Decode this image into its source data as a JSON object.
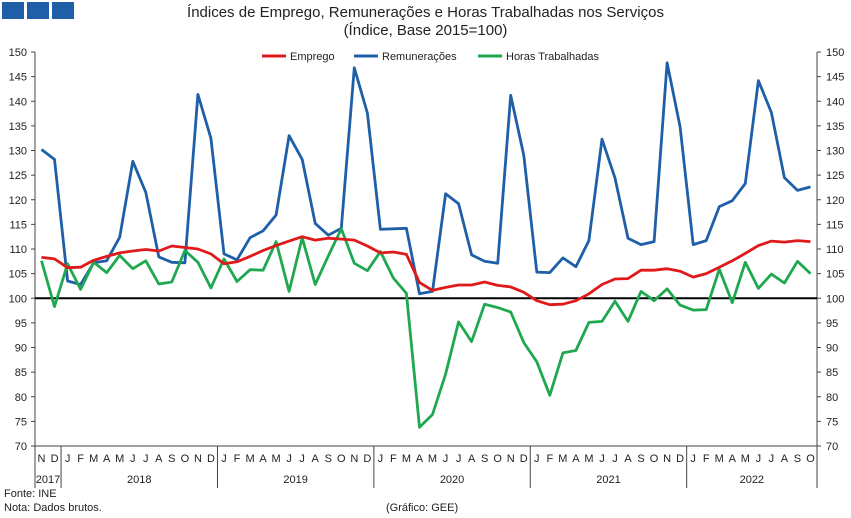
{
  "header": {
    "title": "Índices de Emprego, Remunerações e Horas Trabalhadas nos Serviços",
    "subtitle": "(Índice, Base 2015=100)"
  },
  "footer": {
    "source": "Fonte: INE",
    "note": "Nota: Dados brutos.",
    "credit": "(Gráfico: GEE)"
  },
  "chart_data": {
    "type": "line",
    "title": "Índices de Emprego, Remunerações e Horas Trabalhadas nos Serviços",
    "subtitle": "(Índice, Base 2015=100)",
    "ylim": [
      70,
      150
    ],
    "yticks": [
      70,
      75,
      80,
      85,
      90,
      95,
      100,
      105,
      110,
      115,
      120,
      125,
      130,
      135,
      140,
      145,
      150
    ],
    "reference_line": 100,
    "legend_position": "top-center",
    "x_month_labels": [
      "N",
      "D",
      "J",
      "F",
      "M",
      "A",
      "M",
      "J",
      "J",
      "A",
      "S",
      "O",
      "N",
      "D",
      "J",
      "F",
      "M",
      "A",
      "M",
      "J",
      "J",
      "A",
      "S",
      "O",
      "N",
      "D",
      "J",
      "F",
      "M",
      "A",
      "M",
      "J",
      "J",
      "A",
      "S",
      "O",
      "N",
      "D",
      "J",
      "F",
      "M",
      "A",
      "M",
      "J",
      "J",
      "A",
      "S",
      "O",
      "N",
      "D",
      "J",
      "F",
      "M",
      "A",
      "M",
      "J",
      "J",
      "A",
      "S",
      "O"
    ],
    "x_year_labels": [
      "2017",
      "2018",
      "2019",
      "2020",
      "2021",
      "2022"
    ],
    "series": [
      {
        "name": "Emprego",
        "color": "#e0191b",
        "values": [
          108.3,
          108.0,
          106.2,
          106.3,
          107.7,
          108.5,
          109.2,
          109.6,
          109.9,
          109.6,
          110.6,
          110.3,
          110.0,
          109.0,
          107.0,
          107.4,
          108.5,
          109.7,
          110.7,
          111.6,
          112.5,
          111.8,
          112.2,
          112.0,
          111.8,
          110.6,
          109.2,
          109.4,
          108.9,
          103.2,
          101.6,
          102.2,
          102.7,
          102.7,
          103.3,
          102.6,
          102.3,
          101.2,
          99.5,
          98.7,
          98.8,
          99.5,
          100.9,
          102.8,
          103.9,
          104.0,
          105.7,
          105.7,
          106.0,
          105.5,
          104.3,
          105.0,
          106.3,
          107.6,
          109.1,
          110.7,
          111.6,
          111.4,
          111.7,
          111.5
        ]
      },
      {
        "name": "Remunerações",
        "color": "#1f5fa8",
        "values": [
          130.2,
          128.2,
          103.5,
          102.8,
          107.2,
          107.6,
          112.4,
          127.8,
          121.5,
          108.4,
          107.3,
          107.2,
          141.4,
          132.5,
          109.0,
          107.8,
          112.3,
          113.7,
          116.9,
          133.0,
          128.2,
          115.2,
          112.8,
          114.2,
          146.8,
          137.6,
          114.0,
          114.1,
          114.2,
          100.9,
          101.4,
          121.2,
          119.2,
          108.8,
          107.5,
          107.1,
          141.2,
          129.0,
          105.3,
          105.2,
          108.2,
          106.4,
          111.7,
          132.3,
          124.4,
          112.2,
          110.9,
          111.5,
          147.8,
          134.8,
          110.9,
          111.7,
          118.6,
          119.8,
          123.3,
          144.2,
          137.7,
          124.5,
          121.9,
          122.6
        ]
      },
      {
        "name": "Horas Trabalhadas",
        "color": "#1fa84f",
        "values": [
          107.6,
          98.3,
          107.0,
          101.8,
          107.3,
          105.2,
          108.7,
          106.0,
          107.6,
          102.9,
          103.3,
          109.7,
          107.3,
          102.1,
          108.0,
          103.4,
          105.8,
          105.7,
          111.5,
          101.4,
          112.3,
          102.8,
          108.6,
          114.1,
          107.1,
          105.6,
          109.5,
          104.1,
          101.0,
          73.8,
          76.4,
          84.6,
          95.2,
          91.2,
          98.8,
          98.1,
          97.2,
          91.0,
          87.1,
          80.3,
          88.9,
          89.4,
          95.1,
          95.3,
          99.4,
          95.3,
          101.4,
          99.5,
          101.9,
          98.6,
          97.6,
          97.7,
          105.9,
          99.1,
          107.3,
          102.0,
          104.9,
          103.1,
          107.5,
          105.0
        ]
      }
    ]
  }
}
